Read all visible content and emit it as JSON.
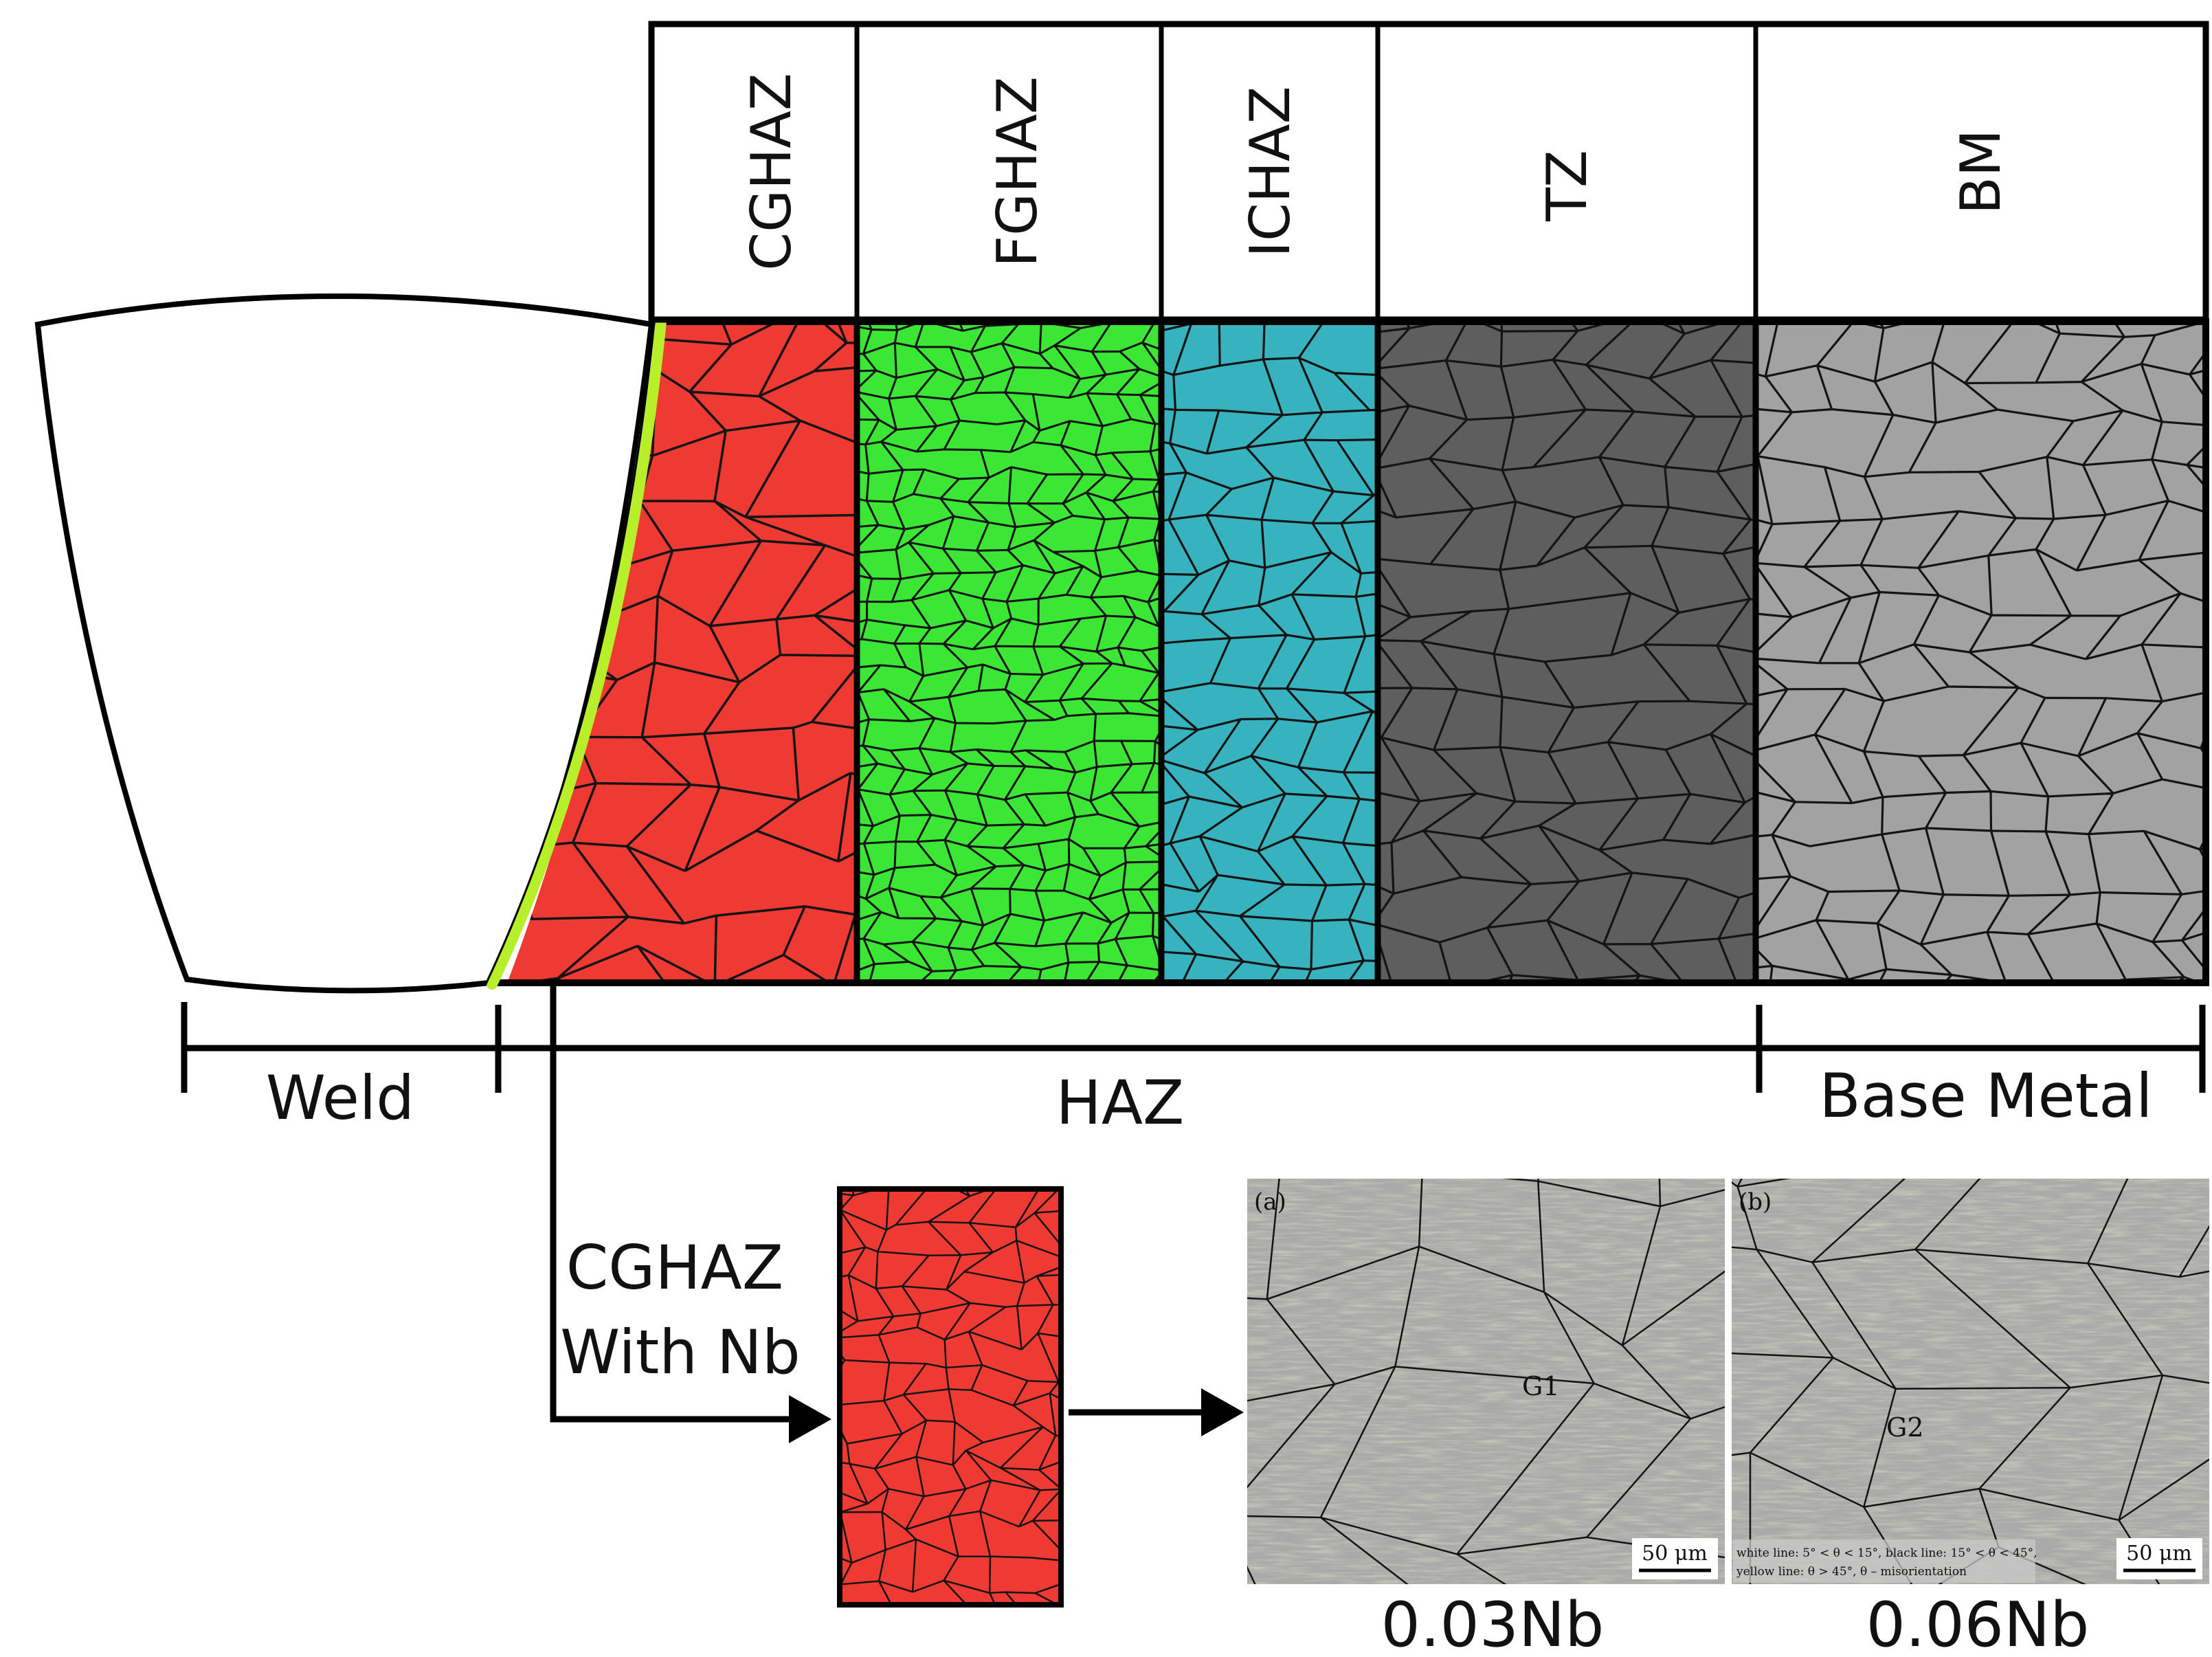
{
  "zones": [
    {
      "key": "cghaz",
      "label": "CGHAZ",
      "color": "#ef3a33"
    },
    {
      "key": "fghaz",
      "label": "FGHAZ",
      "color": "#3be634"
    },
    {
      "key": "ichaz",
      "label": "ICHAZ",
      "color": "#36b3bf"
    },
    {
      "key": "tz",
      "label": "TZ",
      "color": "#5e5e5e"
    },
    {
      "key": "bm",
      "label": "BM",
      "color": "#a2a2a2"
    }
  ],
  "fusion_line_color": "#b7ef2b",
  "regions": {
    "weld": "Weld",
    "haz": "HAZ",
    "base_metal": "Base Metal"
  },
  "callout": {
    "line1": "CGHAZ",
    "line2": "With Nb"
  },
  "micrographs": [
    {
      "panel": "(a)",
      "grain_label": "G1",
      "scale": "50 μm",
      "caption": "0.03Nb"
    },
    {
      "panel": "(b)",
      "grain_label": "G2",
      "scale": "50 μm",
      "caption": "0.06Nb",
      "legend_line1": "white line: 5° < θ < 15°, black line: 15° < θ < 45°,",
      "legend_line2": "yellow line: θ > 45°, θ – misorientation"
    }
  ]
}
